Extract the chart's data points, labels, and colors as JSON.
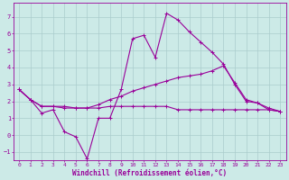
{
  "background_color": "#cceae7",
  "grid_color": "#aacccc",
  "line_color": "#990099",
  "xlabel": "Windchill (Refroidissement éolien,°C)",
  "xlabel_fontsize": 5.5,
  "xtick_fontsize": 4.5,
  "ytick_fontsize": 5.0,
  "xlim": [
    -0.5,
    23.5
  ],
  "ylim": [
    -1.5,
    7.8
  ],
  "yticks": [
    -1,
    0,
    1,
    2,
    3,
    4,
    5,
    6,
    7
  ],
  "xticks": [
    0,
    1,
    2,
    3,
    4,
    5,
    6,
    7,
    8,
    9,
    10,
    11,
    12,
    13,
    14,
    15,
    16,
    17,
    18,
    19,
    20,
    21,
    22,
    23
  ],
  "line1_x": [
    0,
    1,
    2,
    3,
    4,
    5,
    6,
    7,
    8,
    9,
    10,
    11,
    12,
    13,
    14,
    15,
    16,
    17,
    18,
    19,
    20,
    21,
    22,
    23
  ],
  "line1_y": [
    2.7,
    2.1,
    1.3,
    1.5,
    0.2,
    -0.1,
    -1.4,
    1.0,
    1.0,
    2.7,
    5.7,
    5.9,
    4.6,
    7.2,
    6.8,
    6.1,
    5.5,
    4.9,
    4.2,
    3.0,
    2.0,
    1.9,
    1.5,
    1.4
  ],
  "line2_x": [
    0,
    1,
    2,
    3,
    4,
    5,
    6,
    7,
    8,
    9,
    10,
    11,
    12,
    13,
    14,
    15,
    16,
    17,
    18,
    19,
    20,
    21,
    22,
    23
  ],
  "line2_y": [
    2.7,
    2.1,
    1.7,
    1.7,
    1.7,
    1.6,
    1.6,
    1.8,
    2.1,
    2.3,
    2.6,
    2.8,
    3.0,
    3.2,
    3.4,
    3.5,
    3.6,
    3.8,
    4.1,
    3.1,
    2.1,
    1.9,
    1.6,
    1.4
  ],
  "line3_x": [
    0,
    1,
    2,
    3,
    4,
    5,
    6,
    7,
    8,
    9,
    10,
    11,
    12,
    13,
    14,
    15,
    16,
    17,
    18,
    19,
    20,
    21,
    22,
    23
  ],
  "line3_y": [
    2.7,
    2.1,
    1.7,
    1.7,
    1.6,
    1.6,
    1.6,
    1.6,
    1.7,
    1.7,
    1.7,
    1.7,
    1.7,
    1.7,
    1.5,
    1.5,
    1.5,
    1.5,
    1.5,
    1.5,
    1.5,
    1.5,
    1.5,
    1.4
  ]
}
